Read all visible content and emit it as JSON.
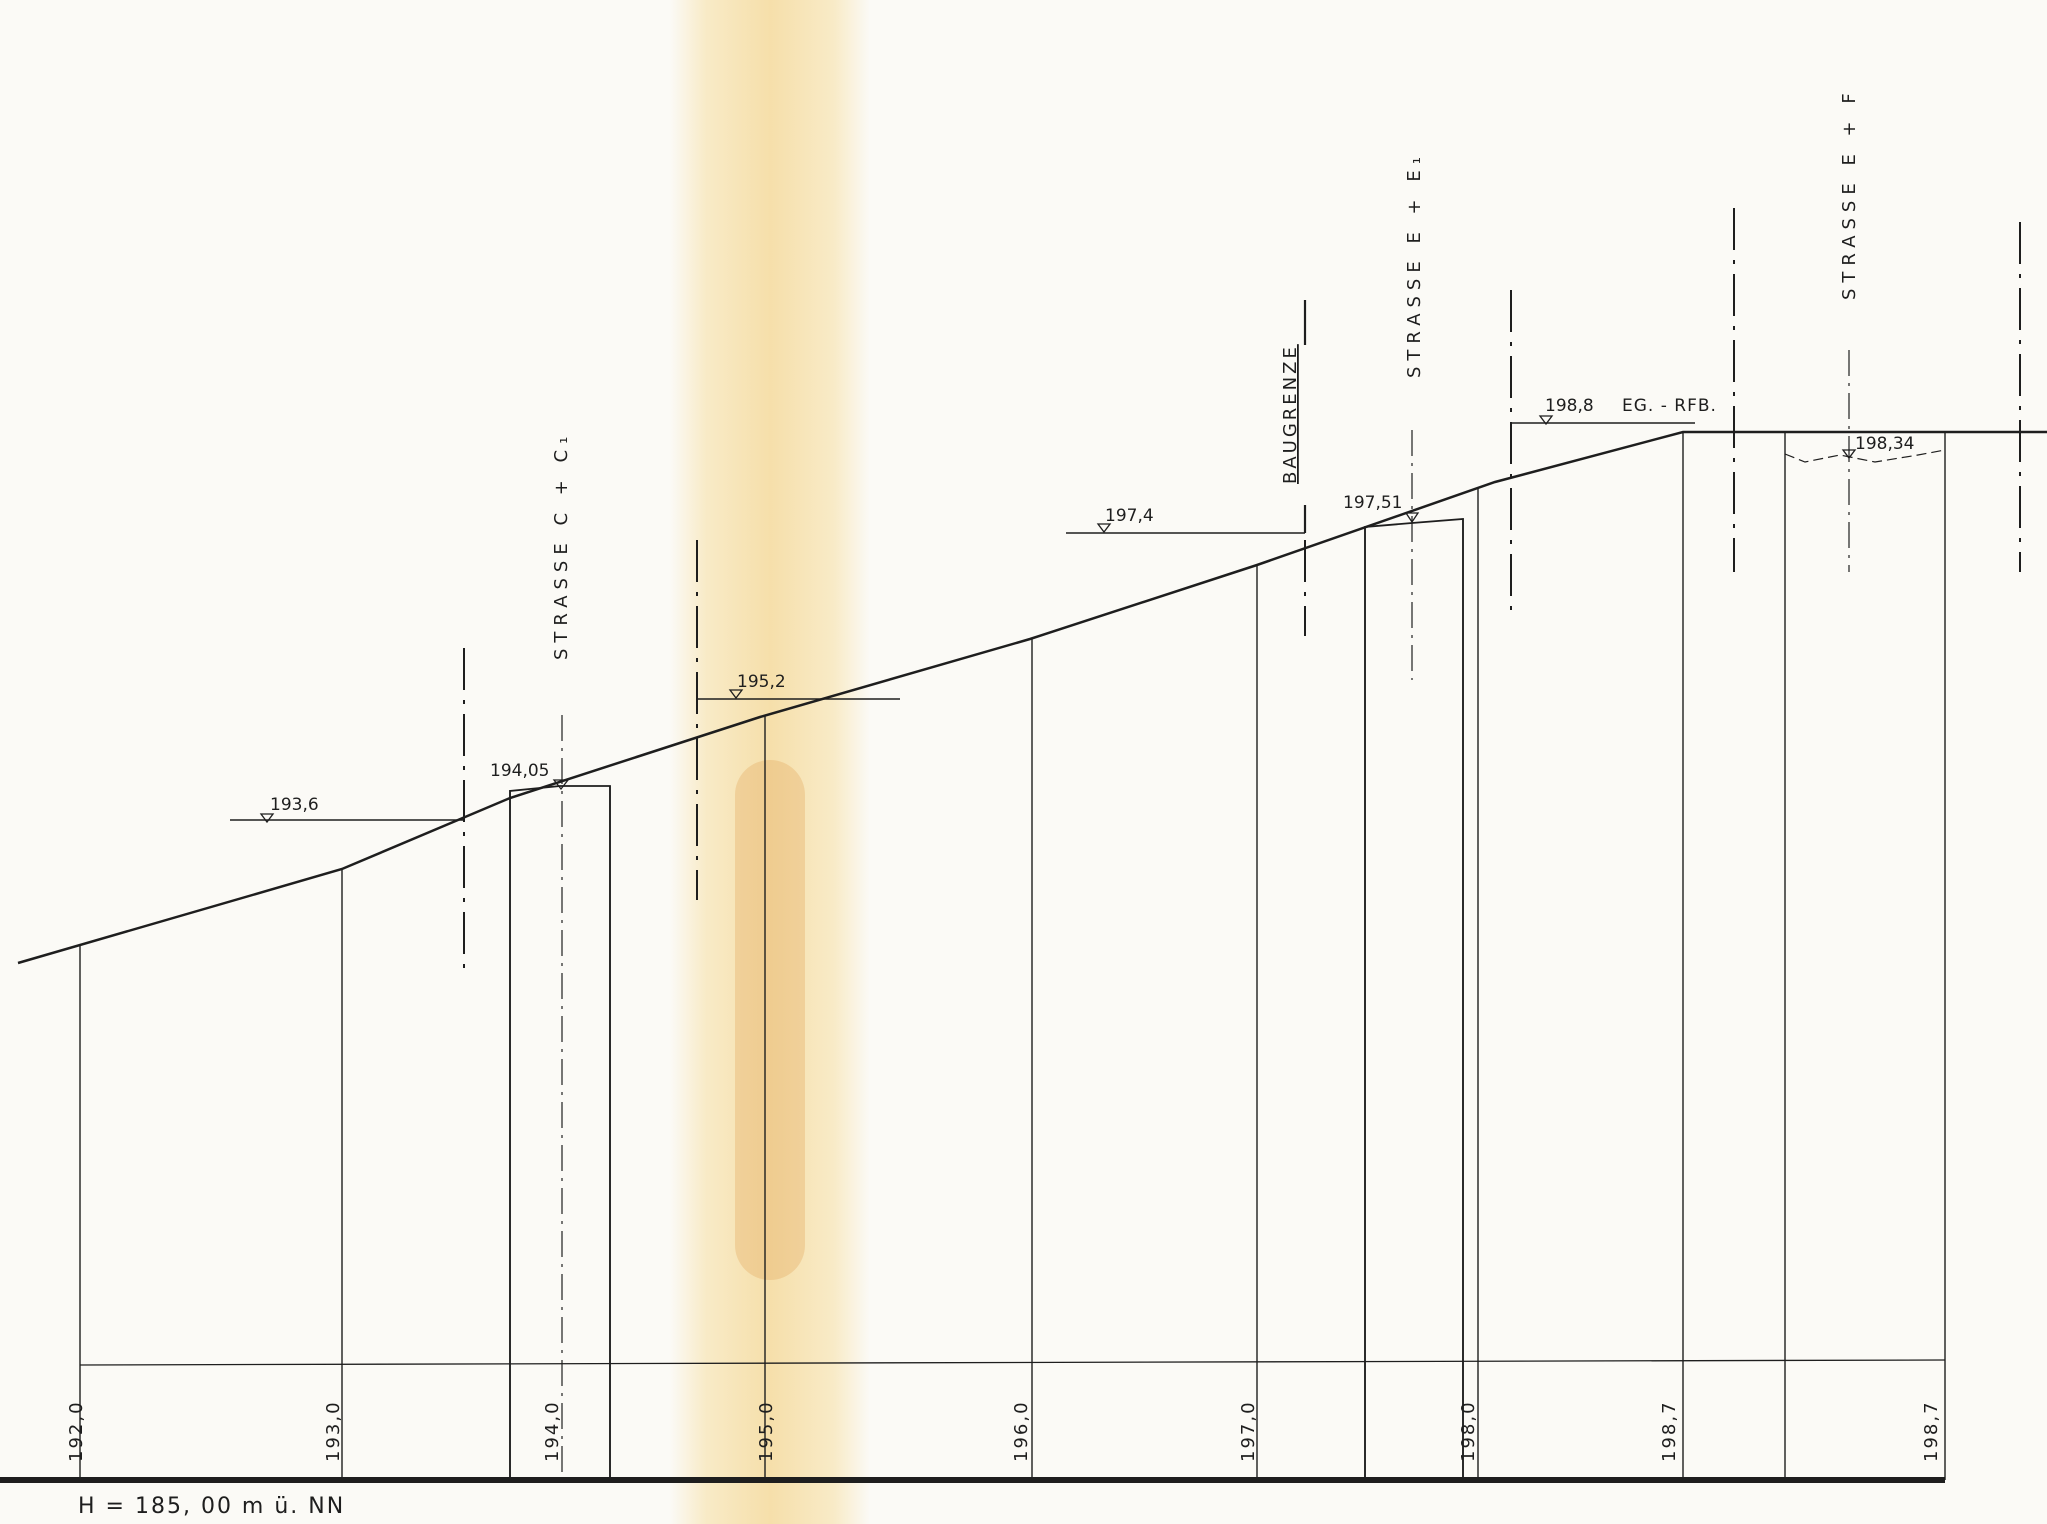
{
  "datum": "H  =  185, 00 m  ü.  NN",
  "streets": [
    {
      "label": "STRASSE   C  +  C₁"
    },
    {
      "label": "STRASSE   E  +  E₁"
    },
    {
      "label": "STRASSE   E  +  F"
    }
  ],
  "baugrenze": "BAUGRENZE",
  "floor_label": "EG. - RFB.",
  "elevation_marks": [
    "193,6",
    "194,05",
    "195,2",
    "197,4",
    "197,51",
    "198,8",
    "198,34"
  ],
  "station_labels": [
    "192,0",
    "193,0",
    "194,0",
    "195,0",
    "196,0",
    "197,0",
    "198,0",
    "198,7",
    "198,7"
  ],
  "colors": {
    "ink": "#1e1e1e",
    "paper": "#fbfaf6",
    "stain": "#f4d691"
  }
}
